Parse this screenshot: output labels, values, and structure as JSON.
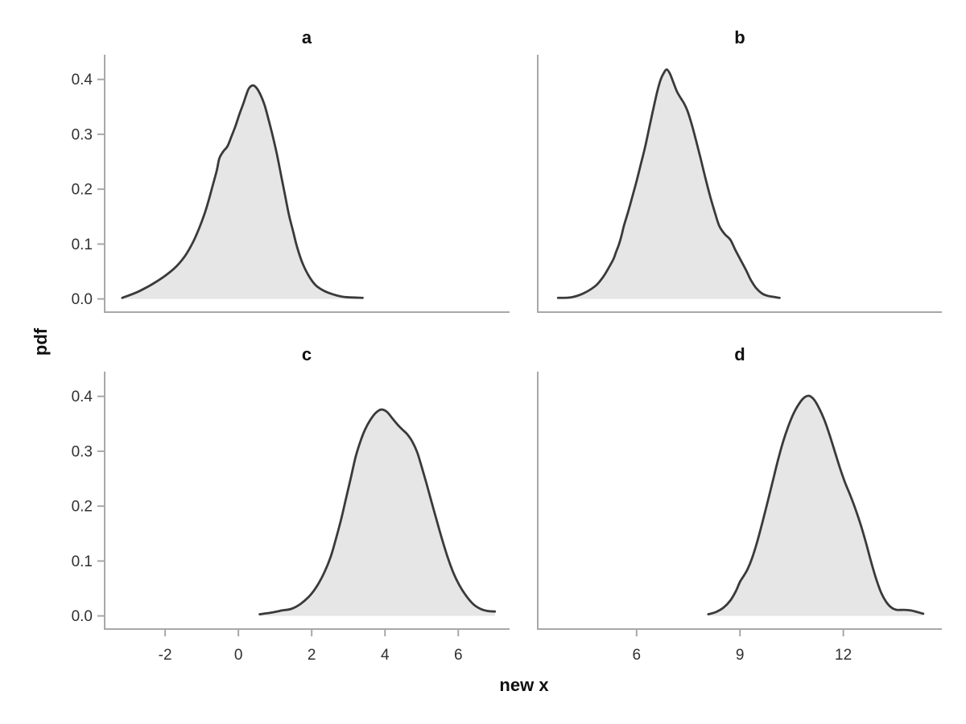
{
  "chart_data": {
    "type": "area",
    "subtype": "kde-density-grid",
    "xlabel": "new x",
    "ylabel": "pdf",
    "grid": false,
    "legend": null,
    "style": {
      "line_color": "#3a3a3a",
      "fill_color": "#e6e6e6",
      "spine_color": "#a8a8a8",
      "tick_label_color": "#303030",
      "title_color": "#0f0f0f",
      "background": "#ffffff"
    },
    "y_axis": {
      "ylim": [
        -0.024,
        0.445
      ],
      "ticks": [
        {
          "value": 0.0,
          "label": "0.0"
        },
        {
          "value": 0.1,
          "label": "0.1"
        },
        {
          "value": 0.2,
          "label": "0.2"
        },
        {
          "value": 0.3,
          "label": "0.3"
        },
        {
          "value": 0.4,
          "label": "0.4"
        }
      ]
    },
    "x_axes": [
      {
        "xlim": [
          -3.65,
          7.4
        ],
        "ticks": [
          {
            "value": -2,
            "label": "-2"
          },
          {
            "value": 0,
            "label": "0"
          },
          {
            "value": 2,
            "label": "2"
          },
          {
            "value": 4,
            "label": "4"
          },
          {
            "value": 6,
            "label": "6"
          }
        ]
      },
      {
        "xlim": [
          3.13,
          14.86
        ],
        "ticks": [
          {
            "value": 6,
            "label": "6"
          },
          {
            "value": 9,
            "label": "9"
          },
          {
            "value": 12,
            "label": "12"
          }
        ]
      }
    ],
    "panels": [
      {
        "title": "a",
        "row": 0,
        "col": 0,
        "peak": {
          "x": 0.4,
          "y": 0.389
        },
        "points": [
          [
            -3.17,
            0.002
          ],
          [
            -2.71,
            0.014
          ],
          [
            -2.2,
            0.033
          ],
          [
            -1.76,
            0.055
          ],
          [
            -1.47,
            0.077
          ],
          [
            -1.25,
            0.102
          ],
          [
            -1.07,
            0.129
          ],
          [
            -0.92,
            0.156
          ],
          [
            -0.81,
            0.18
          ],
          [
            -0.7,
            0.207
          ],
          [
            -0.59,
            0.234
          ],
          [
            -0.52,
            0.256
          ],
          [
            -0.41,
            0.269
          ],
          [
            -0.3,
            0.278
          ],
          [
            -0.19,
            0.296
          ],
          [
            -0.08,
            0.315
          ],
          [
            0.03,
            0.337
          ],
          [
            0.14,
            0.357
          ],
          [
            0.21,
            0.371
          ],
          [
            0.29,
            0.384
          ],
          [
            0.4,
            0.389
          ],
          [
            0.5,
            0.384
          ],
          [
            0.61,
            0.371
          ],
          [
            0.72,
            0.352
          ],
          [
            0.83,
            0.325
          ],
          [
            0.94,
            0.296
          ],
          [
            1.05,
            0.264
          ],
          [
            1.16,
            0.227
          ],
          [
            1.27,
            0.19
          ],
          [
            1.38,
            0.153
          ],
          [
            1.49,
            0.124
          ],
          [
            1.6,
            0.095
          ],
          [
            1.75,
            0.065
          ],
          [
            1.93,
            0.041
          ],
          [
            2.11,
            0.025
          ],
          [
            2.33,
            0.015
          ],
          [
            2.55,
            0.009
          ],
          [
            2.77,
            0.005
          ],
          [
            2.99,
            0.003
          ],
          [
            3.39,
            0.002
          ]
        ]
      },
      {
        "title": "b",
        "row": 0,
        "col": 1,
        "peak": {
          "x": 6.88,
          "y": 0.418
        },
        "points": [
          [
            3.72,
            0.002
          ],
          [
            4.1,
            0.003
          ],
          [
            4.45,
            0.01
          ],
          [
            4.79,
            0.023
          ],
          [
            4.98,
            0.036
          ],
          [
            5.09,
            0.046
          ],
          [
            5.21,
            0.059
          ],
          [
            5.33,
            0.073
          ],
          [
            5.4,
            0.085
          ],
          [
            5.49,
            0.1
          ],
          [
            5.56,
            0.115
          ],
          [
            5.63,
            0.133
          ],
          [
            5.75,
            0.158
          ],
          [
            5.87,
            0.185
          ],
          [
            6.0,
            0.215
          ],
          [
            6.12,
            0.245
          ],
          [
            6.24,
            0.275
          ],
          [
            6.36,
            0.31
          ],
          [
            6.48,
            0.345
          ],
          [
            6.6,
            0.378
          ],
          [
            6.7,
            0.4
          ],
          [
            6.8,
            0.413
          ],
          [
            6.88,
            0.418
          ],
          [
            6.97,
            0.41
          ],
          [
            7.07,
            0.394
          ],
          [
            7.17,
            0.378
          ],
          [
            7.28,
            0.366
          ],
          [
            7.38,
            0.356
          ],
          [
            7.48,
            0.342
          ],
          [
            7.6,
            0.318
          ],
          [
            7.72,
            0.29
          ],
          [
            7.85,
            0.258
          ],
          [
            7.99,
            0.222
          ],
          [
            8.13,
            0.188
          ],
          [
            8.27,
            0.158
          ],
          [
            8.4,
            0.133
          ],
          [
            8.56,
            0.118
          ],
          [
            8.72,
            0.108
          ],
          [
            8.86,
            0.09
          ],
          [
            9.02,
            0.071
          ],
          [
            9.18,
            0.052
          ],
          [
            9.32,
            0.034
          ],
          [
            9.48,
            0.019
          ],
          [
            9.64,
            0.01
          ],
          [
            9.79,
            0.006
          ],
          [
            9.95,
            0.004
          ],
          [
            10.15,
            0.002
          ]
        ]
      },
      {
        "title": "c",
        "row": 1,
        "col": 0,
        "peak": {
          "x": 3.9,
          "y": 0.376
        },
        "points": [
          [
            0.58,
            0.003
          ],
          [
            0.9,
            0.006
          ],
          [
            1.2,
            0.01
          ],
          [
            1.45,
            0.013
          ],
          [
            1.7,
            0.022
          ],
          [
            1.95,
            0.037
          ],
          [
            2.15,
            0.055
          ],
          [
            2.35,
            0.08
          ],
          [
            2.52,
            0.108
          ],
          [
            2.66,
            0.14
          ],
          [
            2.8,
            0.175
          ],
          [
            2.94,
            0.215
          ],
          [
            3.08,
            0.255
          ],
          [
            3.2,
            0.29
          ],
          [
            3.33,
            0.318
          ],
          [
            3.46,
            0.34
          ],
          [
            3.6,
            0.357
          ],
          [
            3.75,
            0.37
          ],
          [
            3.9,
            0.376
          ],
          [
            4.05,
            0.372
          ],
          [
            4.2,
            0.36
          ],
          [
            4.35,
            0.348
          ],
          [
            4.5,
            0.338
          ],
          [
            4.62,
            0.33
          ],
          [
            4.75,
            0.317
          ],
          [
            4.88,
            0.298
          ],
          [
            5.0,
            0.272
          ],
          [
            5.13,
            0.242
          ],
          [
            5.27,
            0.208
          ],
          [
            5.42,
            0.172
          ],
          [
            5.57,
            0.137
          ],
          [
            5.72,
            0.105
          ],
          [
            5.87,
            0.078
          ],
          [
            6.03,
            0.056
          ],
          [
            6.2,
            0.038
          ],
          [
            6.4,
            0.022
          ],
          [
            6.6,
            0.013
          ],
          [
            6.8,
            0.009
          ],
          [
            7.0,
            0.008
          ]
        ]
      },
      {
        "title": "d",
        "row": 1,
        "col": 1,
        "peak": {
          "x": 11.0,
          "y": 0.401
        },
        "points": [
          [
            8.08,
            0.003
          ],
          [
            8.3,
            0.007
          ],
          [
            8.52,
            0.015
          ],
          [
            8.72,
            0.028
          ],
          [
            8.88,
            0.045
          ],
          [
            9.0,
            0.062
          ],
          [
            9.1,
            0.072
          ],
          [
            9.22,
            0.085
          ],
          [
            9.35,
            0.105
          ],
          [
            9.5,
            0.135
          ],
          [
            9.65,
            0.17
          ],
          [
            9.8,
            0.207
          ],
          [
            9.95,
            0.245
          ],
          [
            10.1,
            0.283
          ],
          [
            10.25,
            0.317
          ],
          [
            10.4,
            0.345
          ],
          [
            10.55,
            0.368
          ],
          [
            10.7,
            0.385
          ],
          [
            10.85,
            0.397
          ],
          [
            11.0,
            0.401
          ],
          [
            11.15,
            0.394
          ],
          [
            11.3,
            0.378
          ],
          [
            11.45,
            0.357
          ],
          [
            11.6,
            0.33
          ],
          [
            11.75,
            0.3
          ],
          [
            11.9,
            0.27
          ],
          [
            12.05,
            0.243
          ],
          [
            12.2,
            0.22
          ],
          [
            12.35,
            0.195
          ],
          [
            12.5,
            0.167
          ],
          [
            12.65,
            0.135
          ],
          [
            12.8,
            0.1
          ],
          [
            12.95,
            0.068
          ],
          [
            13.1,
            0.042
          ],
          [
            13.25,
            0.025
          ],
          [
            13.4,
            0.015
          ],
          [
            13.55,
            0.011
          ],
          [
            13.75,
            0.011
          ],
          [
            13.95,
            0.01
          ],
          [
            14.15,
            0.007
          ],
          [
            14.32,
            0.004
          ]
        ]
      }
    ]
  }
}
